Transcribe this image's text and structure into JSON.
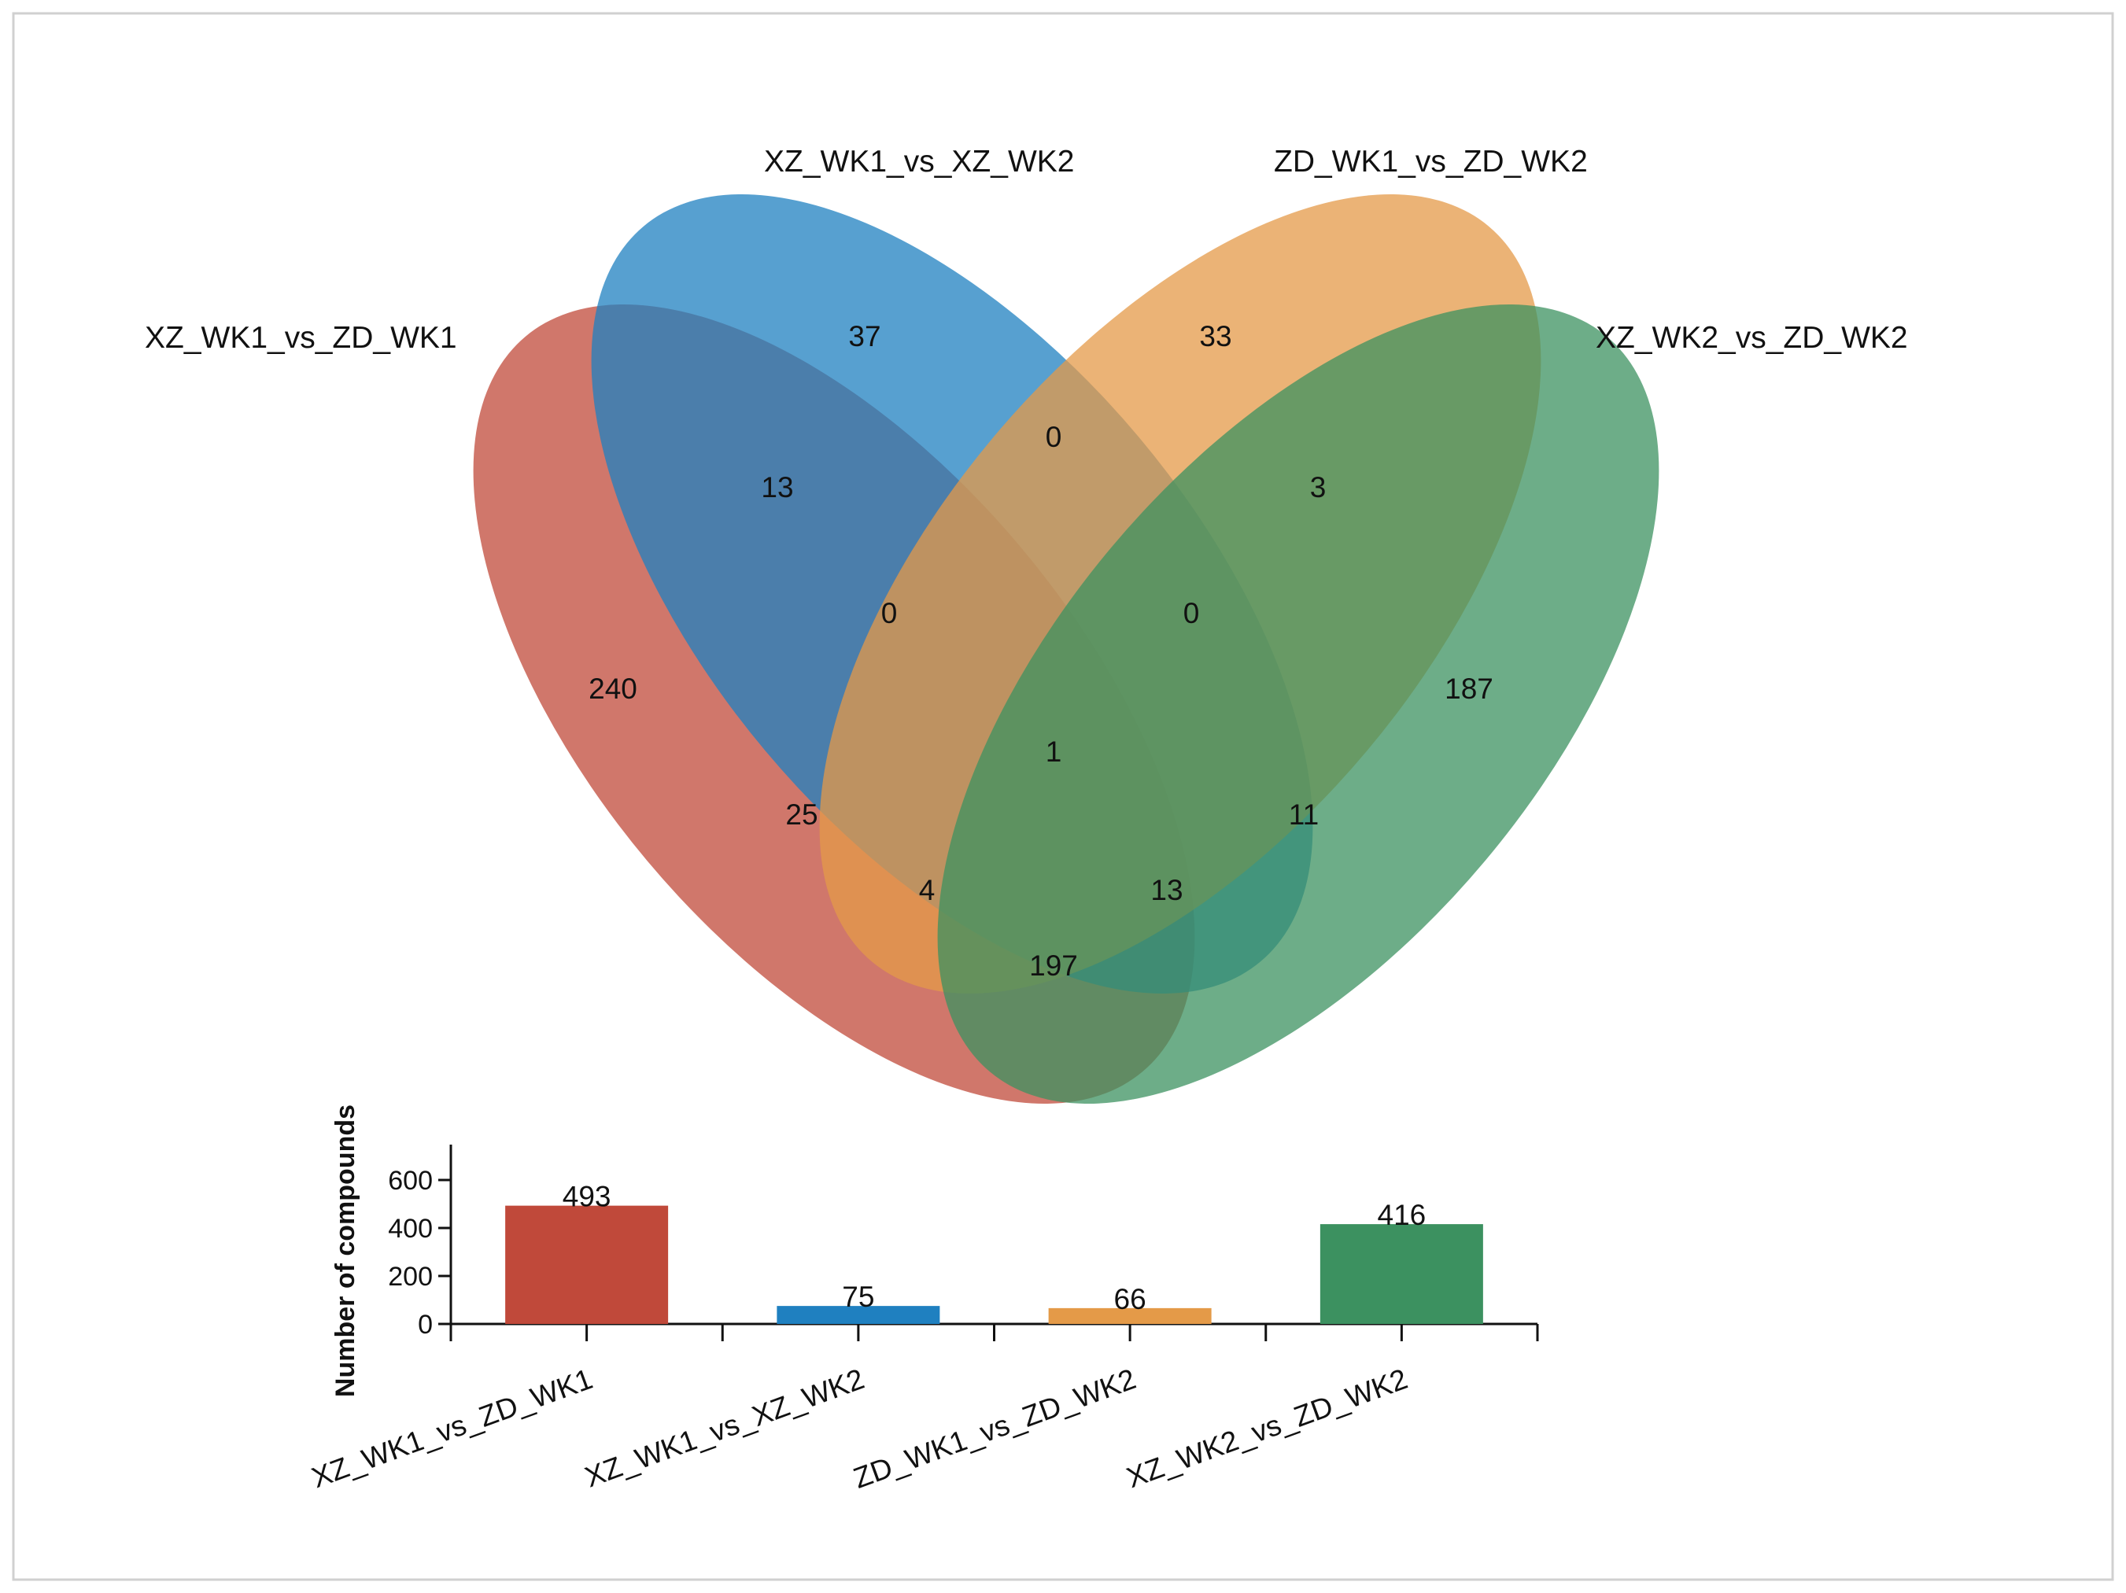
{
  "chart_data": [
    {
      "type": "venn",
      "sets": [
        {
          "name": "XZ_WK1_vs_ZD_WK1",
          "color": "#c0493a"
        },
        {
          "name": "XZ_WK1_vs_XZ_WK2",
          "color": "#1f80c0"
        },
        {
          "name": "ZD_WK1_vs_ZD_WK2",
          "color": "#e49a48"
        },
        {
          "name": "XZ_WK2_vs_ZD_WK2",
          "color": "#3c9160"
        }
      ],
      "regions": [
        {
          "sets": [
            "XZ_WK1_vs_XZ_WK2"
          ],
          "value": 37
        },
        {
          "sets": [
            "ZD_WK1_vs_ZD_WK2"
          ],
          "value": 33
        },
        {
          "sets": [
            "XZ_WK1_vs_XZ_WK2",
            "ZD_WK1_vs_ZD_WK2"
          ],
          "value": 0
        },
        {
          "sets": [
            "XZ_WK1_vs_ZD_WK1",
            "XZ_WK1_vs_XZ_WK2"
          ],
          "value": 13
        },
        {
          "sets": [
            "ZD_WK1_vs_ZD_WK2",
            "XZ_WK2_vs_ZD_WK2"
          ],
          "value": 3
        },
        {
          "sets": [
            "XZ_WK1_vs_ZD_WK1",
            "XZ_WK1_vs_XZ_WK2",
            "ZD_WK1_vs_ZD_WK2"
          ],
          "value": 0
        },
        {
          "sets": [
            "XZ_WK1_vs_XZ_WK2",
            "ZD_WK1_vs_ZD_WK2",
            "XZ_WK2_vs_ZD_WK2"
          ],
          "value": 0
        },
        {
          "sets": [
            "XZ_WK1_vs_ZD_WK1"
          ],
          "value": 240
        },
        {
          "sets": [
            "XZ_WK2_vs_ZD_WK2"
          ],
          "value": 187
        },
        {
          "sets": [
            "XZ_WK1_vs_ZD_WK1",
            "XZ_WK1_vs_XZ_WK2",
            "ZD_WK1_vs_ZD_WK2",
            "XZ_WK2_vs_ZD_WK2"
          ],
          "value": 1
        },
        {
          "sets": [
            "XZ_WK1_vs_ZD_WK1",
            "ZD_WK1_vs_ZD_WK2"
          ],
          "value": 25
        },
        {
          "sets": [
            "XZ_WK1_vs_XZ_WK2",
            "XZ_WK2_vs_ZD_WK2"
          ],
          "value": 11
        },
        {
          "sets": [
            "XZ_WK1_vs_ZD_WK1",
            "ZD_WK1_vs_ZD_WK2",
            "XZ_WK2_vs_ZD_WK2"
          ],
          "value": 4
        },
        {
          "sets": [
            "XZ_WK1_vs_ZD_WK1",
            "XZ_WK1_vs_XZ_WK2",
            "XZ_WK2_vs_ZD_WK2"
          ],
          "value": 13
        },
        {
          "sets": [
            "XZ_WK1_vs_ZD_WK1",
            "XZ_WK2_vs_ZD_WK2"
          ],
          "value": 197
        }
      ]
    },
    {
      "type": "bar",
      "categories": [
        "XZ_WK1_vs_ZD_WK1",
        "XZ_WK1_vs_XZ_WK2",
        "ZD_WK1_vs_ZD_WK2",
        "XZ_WK2_vs_ZD_WK2"
      ],
      "values": [
        493,
        75,
        66,
        416
      ],
      "colors": [
        "#c0493a",
        "#1f80c0",
        "#e49a48",
        "#3c9160"
      ],
      "title": "",
      "xlabel": "",
      "ylabel": "Number of compounds",
      "ylim": [
        0,
        750
      ],
      "yticks": [
        0,
        200,
        400,
        600
      ],
      "grid": false
    }
  ]
}
